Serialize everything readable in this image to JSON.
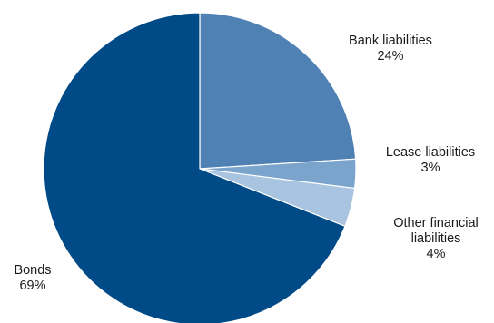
{
  "chart_data": {
    "type": "pie",
    "title": "",
    "slices": [
      {
        "label_lines": [
          "Bank liabilities"
        ],
        "value_label": "24%",
        "value": 24,
        "color": "#4f81b4"
      },
      {
        "label_lines": [
          "Lease liabilities"
        ],
        "value_label": "3%",
        "value": 3,
        "color": "#7aa4cc"
      },
      {
        "label_lines": [
          "Other financial",
          "liabilities"
        ],
        "value_label": "4%",
        "value": 4,
        "color": "#a8c4e0"
      },
      {
        "label_lines": [
          "Bonds"
        ],
        "value_label": "69%",
        "value": 69,
        "color": "#004a87"
      }
    ]
  }
}
